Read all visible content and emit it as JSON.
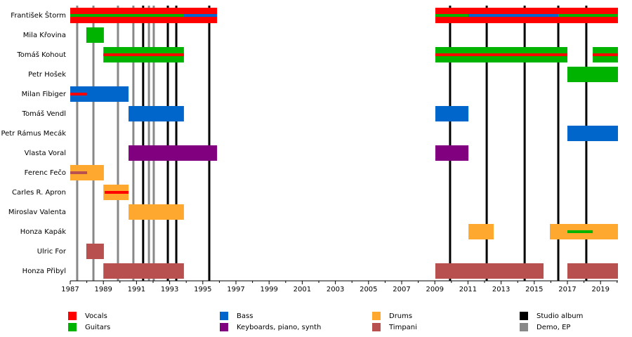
{
  "chart_data": {
    "type": "timeline",
    "members": [
      "František Štorm",
      "Mila Křovina",
      "Tomáš Kohout",
      "Petr Hošek",
      "Milan Fibiger",
      "Tomáš Vendl",
      "Petr Rámus Mecák",
      "Vlasta Voral",
      "Ferenc Fečo",
      "Carles R. Apron",
      "Miroslav Valenta",
      "Honza Kapák",
      "Ulric For",
      "Honza Přibyl"
    ],
    "legend": [
      {
        "name": "Vocals",
        "color": "#ff0000"
      },
      {
        "name": "Guitars",
        "color": "#00b300"
      },
      {
        "name": "Bass",
        "color": "#0066cc"
      },
      {
        "name": "Keyboards, piano, synth",
        "color": "#800080"
      },
      {
        "name": "Drums",
        "color": "#ffa830"
      },
      {
        "name": "Timpani",
        "color": "#b85050"
      },
      {
        "name": "Studio album",
        "color": "#000000"
      },
      {
        "name": "Demo, EP",
        "color": "#888888"
      }
    ],
    "bars": [
      {
        "member": 0,
        "role": 0,
        "start": 1987,
        "end": 1995.86
      },
      {
        "member": 0,
        "role": 0,
        "start": 2009.03,
        "end": 2020.05
      },
      {
        "member": 1,
        "role": 1,
        "start": 1987.97,
        "end": 1989.03
      },
      {
        "member": 2,
        "role": 1,
        "start": 1989,
        "end": 1993.86
      },
      {
        "member": 2,
        "role": 1,
        "start": 2009.03,
        "end": 2017
      },
      {
        "member": 2,
        "role": 1,
        "start": 2018.53,
        "end": 2020.05
      },
      {
        "member": 3,
        "role": 1,
        "start": 2017,
        "end": 2020.05
      },
      {
        "member": 4,
        "role": 2,
        "start": 1987,
        "end": 1990.52
      },
      {
        "member": 5,
        "role": 2,
        "start": 1990.52,
        "end": 1993.86
      },
      {
        "member": 5,
        "role": 2,
        "start": 2009.03,
        "end": 2011.03
      },
      {
        "member": 6,
        "role": 2,
        "start": 2017,
        "end": 2020.05
      },
      {
        "member": 7,
        "role": 3,
        "start": 1990.52,
        "end": 1995.86
      },
      {
        "member": 7,
        "role": 3,
        "start": 2009.03,
        "end": 2011.03
      },
      {
        "member": 8,
        "role": 4,
        "start": 1987,
        "end": 1989.03
      },
      {
        "member": 9,
        "role": 4,
        "start": 1989,
        "end": 1990.52
      },
      {
        "member": 10,
        "role": 4,
        "start": 1990.52,
        "end": 1993.86
      },
      {
        "member": 11,
        "role": 4,
        "start": 2011.03,
        "end": 2012.55
      },
      {
        "member": 11,
        "role": 4,
        "start": 2015.94,
        "end": 2020.05
      },
      {
        "member": 12,
        "role": 5,
        "start": 1987.97,
        "end": 1989.03
      },
      {
        "member": 13,
        "role": 5,
        "start": 1989,
        "end": 1993.86
      },
      {
        "member": 13,
        "role": 5,
        "start": 2009.03,
        "end": 2015.56
      },
      {
        "member": 13,
        "role": 5,
        "start": 2017,
        "end": 2020.05
      }
    ],
    "stripes": [
      {
        "member": 0,
        "role": 1,
        "start": 1987,
        "end": 1995.86
      },
      {
        "member": 0,
        "role": 1,
        "start": 2009.03,
        "end": 2020.05
      },
      {
        "member": 0,
        "role": 2,
        "start": 1993.86,
        "end": 1995.86
      },
      {
        "member": 0,
        "role": 2,
        "start": 2011.03,
        "end": 2016.45
      },
      {
        "member": 2,
        "role": 0,
        "start": 1989,
        "end": 1993.86
      },
      {
        "member": 2,
        "role": 0,
        "start": 2009.03,
        "end": 2017
      },
      {
        "member": 2,
        "role": 0,
        "start": 2018.53,
        "end": 2020.05
      },
      {
        "member": 4,
        "role": 0,
        "start": 1987,
        "end": 1988.02
      },
      {
        "member": 8,
        "role": 5,
        "start": 1987,
        "end": 1988.02
      },
      {
        "member": 9,
        "role": 0,
        "start": 1989.08,
        "end": 1990.52
      },
      {
        "member": 11,
        "role": 1,
        "start": 2017,
        "end": 2018.53
      }
    ],
    "releases": [
      {
        "kind": 7,
        "date": 1987.42
      },
      {
        "kind": 7,
        "date": 1988.4
      },
      {
        "kind": 7,
        "date": 1989.88
      },
      {
        "kind": 7,
        "date": 1990.81
      },
      {
        "kind": 6,
        "date": 1991.4
      },
      {
        "kind": 7,
        "date": 1991.75
      },
      {
        "kind": 7,
        "date": 1992.04
      },
      {
        "kind": 6,
        "date": 1992.89
      },
      {
        "kind": 6,
        "date": 1993.4
      },
      {
        "kind": 6,
        "date": 1995.39
      },
      {
        "kind": 6,
        "date": 2009.92
      },
      {
        "kind": 6,
        "date": 2012.13
      },
      {
        "kind": 6,
        "date": 2014.42
      },
      {
        "kind": 6,
        "date": 2016.45
      },
      {
        "kind": 6,
        "date": 2018.14
      }
    ],
    "xlim": [
      1987,
      2020.05
    ],
    "xticks": [
      1987,
      1989,
      1991,
      1993,
      1995,
      1997,
      1999,
      2001,
      2003,
      2005,
      2007,
      2009,
      2011,
      2013,
      2015,
      2017,
      2019
    ],
    "xticks_minor": [
      1988,
      1990,
      1992,
      1994,
      1996,
      1998,
      2000,
      2002,
      2004,
      2006,
      2008,
      2010,
      2012,
      2014,
      2016,
      2018,
      2020
    ]
  }
}
